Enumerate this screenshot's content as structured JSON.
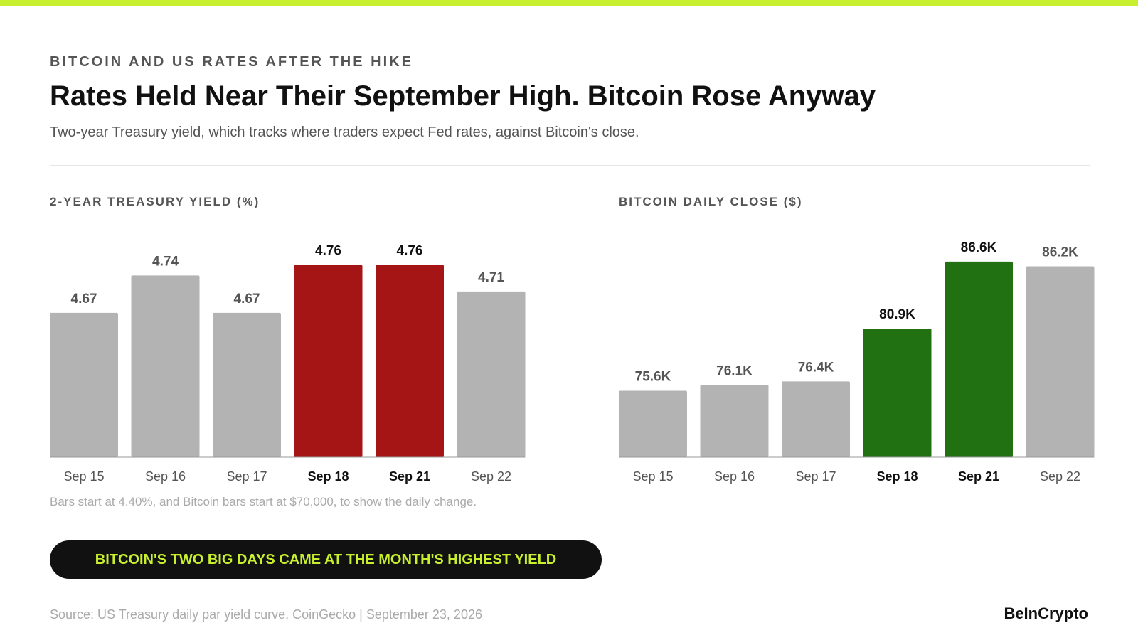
{
  "colors": {
    "accent": "#c8f02e",
    "neutral_bar": "#b3b3b3",
    "highlight_yield": "#a51515",
    "highlight_btc": "#217012",
    "axis": "#999999"
  },
  "header": {
    "kicker": "BITCOIN AND US RATES AFTER THE HIKE",
    "title": "Rates Held Near Their September High. Bitcoin Rose Anyway",
    "subtitle": "Two-year Treasury yield, which tracks where traders expect Fed rates, against Bitcoin's close."
  },
  "chart_data": [
    {
      "type": "bar",
      "title": "2-YEAR TREASURY YIELD (%)",
      "categories": [
        "Sep 15",
        "Sep 16",
        "Sep 17",
        "Sep 18",
        "Sep 21",
        "Sep 22"
      ],
      "values": [
        4.67,
        4.74,
        4.67,
        4.76,
        4.76,
        4.71
      ],
      "labels": [
        "4.67",
        "4.74",
        "4.67",
        "4.76",
        "4.76",
        "4.71"
      ],
      "highlight": [
        false,
        false,
        false,
        true,
        true,
        false
      ],
      "ylim": [
        4.4,
        4.83
      ]
    },
    {
      "type": "bar",
      "title": "BITCOIN DAILY CLOSE ($)",
      "categories": [
        "Sep 15",
        "Sep 16",
        "Sep 17",
        "Sep 18",
        "Sep 21",
        "Sep 22"
      ],
      "values": [
        75600,
        76100,
        76400,
        80900,
        86600,
        86200
      ],
      "labels": [
        "75.6K",
        "76.1K",
        "76.4K",
        "80.9K",
        "86.6K",
        "86.2K"
      ],
      "highlight": [
        false,
        false,
        false,
        true,
        true,
        false
      ],
      "ylim": [
        70000,
        89500
      ]
    }
  ],
  "footnote": "Bars start at 4.40%, and Bitcoin bars start at $70,000, to show the daily change.",
  "callout": "BITCOIN'S TWO BIG DAYS CAME AT THE MONTH'S HIGHEST YIELD",
  "footer": {
    "source": "Source: US Treasury daily par yield curve, CoinGecko | September 23, 2026",
    "brand": "BeInCrypto"
  }
}
